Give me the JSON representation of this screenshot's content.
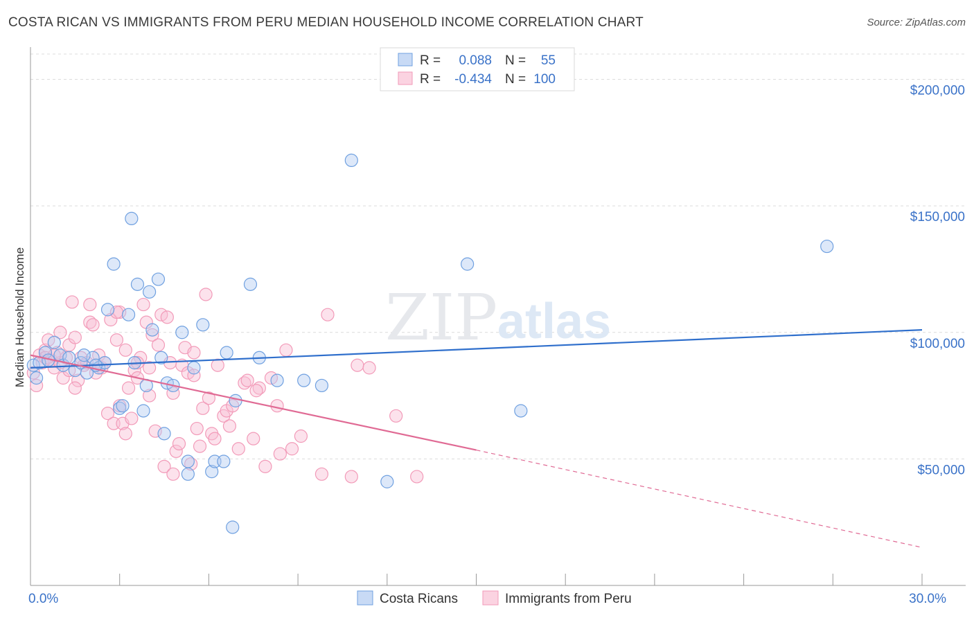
{
  "chart_data": {
    "type": "scatter",
    "title": "COSTA RICAN VS IMMIGRANTS FROM PERU MEDIAN HOUSEHOLD INCOME CORRELATION CHART",
    "source": "Source: ZipAtlas.com",
    "xlabel": "",
    "ylabel": "Median Household Income",
    "xlim": [
      0,
      30
    ],
    "ylim": [
      0,
      210000
    ],
    "x_tick_labels": [
      {
        "value": 0,
        "label": "0.0%"
      },
      {
        "value": 30,
        "label": "30.0%"
      }
    ],
    "y_tick_labels": [
      {
        "value": 50000,
        "label": "$50,000"
      },
      {
        "value": 100000,
        "label": "$100,000"
      },
      {
        "value": 150000,
        "label": "$150,000"
      },
      {
        "value": 200000,
        "label": "$200,000"
      }
    ],
    "watermark": {
      "part1": "ZIP",
      "part2": "atlas"
    },
    "legend_position": "top-center",
    "colors": {
      "blue": "#6fa0e0",
      "blue_line": "#2f6fcc",
      "pink": "#f29ab8",
      "pink_line": "#e06a94",
      "axis_text": "#3a72c8"
    },
    "series": [
      {
        "name": "Costa Ricans",
        "stats": {
          "r_label": "R =",
          "r_value": "0.088",
          "n_label": "N =",
          "n_value": "55"
        },
        "trend": {
          "x0": 0,
          "y0": 86000,
          "x1": 30,
          "y1": 101000
        },
        "points": [
          [
            0.1,
            87000
          ],
          [
            0.3,
            88000
          ],
          [
            0.5,
            92000
          ],
          [
            0.6,
            89000
          ],
          [
            0.8,
            96000
          ],
          [
            1.0,
            91000
          ],
          [
            1.1,
            87000
          ],
          [
            1.3,
            90000
          ],
          [
            1.5,
            85000
          ],
          [
            1.7,
            88000
          ],
          [
            1.9,
            84000
          ],
          [
            2.1,
            90000
          ],
          [
            2.3,
            86000
          ],
          [
            2.5,
            88000
          ],
          [
            2.8,
            127000
          ],
          [
            2.6,
            109000
          ],
          [
            3.0,
            70000
          ],
          [
            3.1,
            71000
          ],
          [
            3.3,
            107000
          ],
          [
            3.4,
            145000
          ],
          [
            3.5,
            88000
          ],
          [
            3.6,
            119000
          ],
          [
            3.8,
            69000
          ],
          [
            3.9,
            79000
          ],
          [
            4.0,
            116000
          ],
          [
            4.1,
            101000
          ],
          [
            4.3,
            121000
          ],
          [
            4.4,
            90000
          ],
          [
            4.6,
            80000
          ],
          [
            4.8,
            79000
          ],
          [
            5.1,
            100000
          ],
          [
            5.3,
            44000
          ],
          [
            5.3,
            49000
          ],
          [
            5.5,
            86000
          ],
          [
            5.8,
            103000
          ],
          [
            6.1,
            45000
          ],
          [
            6.2,
            49000
          ],
          [
            6.5,
            49000
          ],
          [
            6.6,
            92000
          ],
          [
            6.8,
            23000
          ],
          [
            6.9,
            73000
          ],
          [
            7.4,
            119000
          ],
          [
            7.7,
            90000
          ],
          [
            8.3,
            81000
          ],
          [
            9.2,
            81000
          ],
          [
            9.8,
            79000
          ],
          [
            10.8,
            168000
          ],
          [
            12.0,
            41000
          ],
          [
            14.7,
            127000
          ],
          [
            16.5,
            69000
          ],
          [
            26.8,
            134000
          ],
          [
            0.2,
            82000
          ],
          [
            1.8,
            91000
          ],
          [
            2.2,
            87000
          ],
          [
            4.5,
            60000
          ]
        ]
      },
      {
        "name": "Immigrants from Peru",
        "stats": {
          "r_label": "R =",
          "r_value": "-0.434",
          "n_label": "N =",
          "n_value": "100"
        },
        "trend": {
          "x0": 0,
          "y0": 91000,
          "x1": 15,
          "y1": 53500,
          "dash_x1": 30,
          "dash_y1": 15000
        },
        "points": [
          [
            0.1,
            84000
          ],
          [
            0.2,
            79000
          ],
          [
            0.3,
            91000
          ],
          [
            0.4,
            88000
          ],
          [
            0.5,
            93000
          ],
          [
            0.5,
            90000
          ],
          [
            0.6,
            97000
          ],
          [
            0.7,
            89000
          ],
          [
            0.8,
            86000
          ],
          [
            0.9,
            92000
          ],
          [
            1.0,
            100000
          ],
          [
            1.0,
            88000
          ],
          [
            1.1,
            82000
          ],
          [
            1.2,
            90000
          ],
          [
            1.3,
            95000
          ],
          [
            1.4,
            112000
          ],
          [
            1.5,
            98000
          ],
          [
            1.6,
            81000
          ],
          [
            1.7,
            90000
          ],
          [
            1.8,
            87000
          ],
          [
            1.9,
            88000
          ],
          [
            2.0,
            104000
          ],
          [
            2.1,
            103000
          ],
          [
            2.2,
            84000
          ],
          [
            2.3,
            91000
          ],
          [
            2.4,
            86000
          ],
          [
            2.5,
            88000
          ],
          [
            2.6,
            68000
          ],
          [
            2.7,
            105000
          ],
          [
            2.8,
            64000
          ],
          [
            2.9,
            97000
          ],
          [
            3.0,
            108000
          ],
          [
            3.0,
            71000
          ],
          [
            3.1,
            64000
          ],
          [
            3.2,
            60000
          ],
          [
            3.3,
            78000
          ],
          [
            3.4,
            66000
          ],
          [
            3.5,
            85000
          ],
          [
            3.6,
            82000
          ],
          [
            3.7,
            90000
          ],
          [
            3.8,
            111000
          ],
          [
            3.9,
            104000
          ],
          [
            4.0,
            86000
          ],
          [
            4.1,
            99000
          ],
          [
            4.2,
            61000
          ],
          [
            4.3,
            95000
          ],
          [
            4.4,
            107000
          ],
          [
            4.5,
            47000
          ],
          [
            4.6,
            106000
          ],
          [
            4.7,
            88000
          ],
          [
            4.8,
            44000
          ],
          [
            4.9,
            53000
          ],
          [
            5.0,
            56000
          ],
          [
            5.1,
            87000
          ],
          [
            5.2,
            94000
          ],
          [
            5.3,
            84000
          ],
          [
            5.4,
            48000
          ],
          [
            5.5,
            83000
          ],
          [
            5.6,
            62000
          ],
          [
            5.7,
            55000
          ],
          [
            5.8,
            70000
          ],
          [
            5.9,
            115000
          ],
          [
            6.0,
            74000
          ],
          [
            6.1,
            60000
          ],
          [
            6.3,
            87000
          ],
          [
            6.5,
            67000
          ],
          [
            6.6,
            69000
          ],
          [
            6.8,
            71000
          ],
          [
            7.0,
            54000
          ],
          [
            7.2,
            80000
          ],
          [
            7.3,
            81000
          ],
          [
            7.5,
            58000
          ],
          [
            7.7,
            78000
          ],
          [
            7.9,
            47000
          ],
          [
            8.1,
            82000
          ],
          [
            8.3,
            71000
          ],
          [
            8.4,
            52000
          ],
          [
            8.6,
            93000
          ],
          [
            8.8,
            54000
          ],
          [
            9.1,
            59000
          ],
          [
            9.8,
            44000
          ],
          [
            10.0,
            107000
          ],
          [
            10.8,
            43000
          ],
          [
            11.0,
            87000
          ],
          [
            11.4,
            86000
          ],
          [
            12.3,
            67000
          ],
          [
            13.0,
            43000
          ],
          [
            3.2,
            93000
          ],
          [
            2.0,
            111000
          ],
          [
            1.5,
            78000
          ],
          [
            4.0,
            75000
          ],
          [
            5.5,
            92000
          ],
          [
            6.7,
            63000
          ],
          [
            0.8,
            91000
          ],
          [
            1.3,
            85000
          ],
          [
            2.9,
            108000
          ],
          [
            3.6,
            88000
          ],
          [
            4.8,
            76000
          ],
          [
            6.2,
            58000
          ],
          [
            7.6,
            77000
          ]
        ]
      }
    ]
  }
}
